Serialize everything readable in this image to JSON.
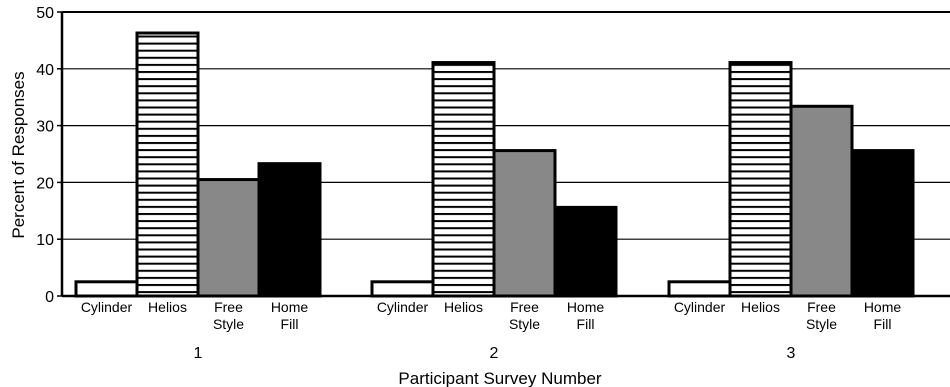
{
  "chart_data": {
    "type": "bar",
    "title": "",
    "xlabel": "Participant Survey Number",
    "ylabel": "Percent of Responses",
    "ylim": [
      0,
      50
    ],
    "yticks": [
      0,
      10,
      20,
      30,
      40,
      50
    ],
    "grid": true,
    "legend": "none",
    "groups": [
      "1",
      "2",
      "3"
    ],
    "series": [
      {
        "name": "Cylinder",
        "label_lines": [
          "Cylinder"
        ],
        "fill": "none",
        "color": "#ffffff",
        "values": [
          2.5,
          2.5,
          2.5
        ]
      },
      {
        "name": "Helios",
        "label_lines": [
          "Helios"
        ],
        "fill": "horizontal-stripes",
        "color": "#ffffff",
        "values": [
          46.3,
          41.1,
          41.1
        ]
      },
      {
        "name": "Free Style",
        "label_lines": [
          "Free",
          "Style"
        ],
        "fill": "solid",
        "color": "#888888",
        "values": [
          20.5,
          25.6,
          33.4
        ]
      },
      {
        "name": "Home Fill",
        "label_lines": [
          "Home",
          "Fill"
        ],
        "fill": "solid",
        "color": "#000000",
        "values": [
          23.3,
          15.6,
          25.6
        ]
      }
    ]
  }
}
